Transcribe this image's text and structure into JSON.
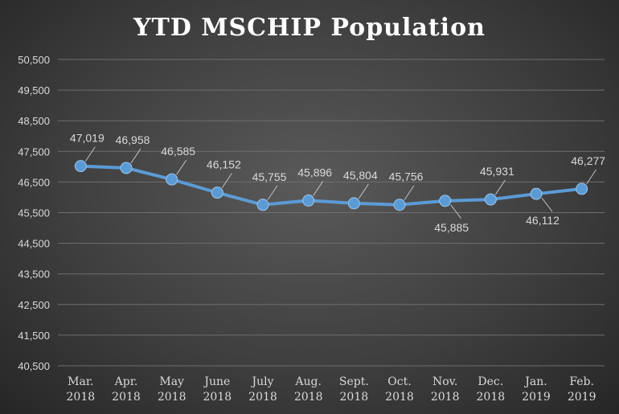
{
  "chart_data": {
    "type": "line",
    "title": "YTD MSCHIP Population",
    "xlabel": "",
    "ylabel": "",
    "categories": [
      [
        "Mar.",
        "2018"
      ],
      [
        "Apr.",
        "2018"
      ],
      [
        "May",
        "2018"
      ],
      [
        "June",
        "2018"
      ],
      [
        "July",
        "2018"
      ],
      [
        "Aug.",
        "2018"
      ],
      [
        "Sept.",
        "2018"
      ],
      [
        "Oct.",
        "2018"
      ],
      [
        "Nov.",
        "2018"
      ],
      [
        "Dec.",
        "2018"
      ],
      [
        "Jan.",
        "2019"
      ],
      [
        "Feb.",
        "2019"
      ]
    ],
    "series": [
      {
        "values": [
          47019,
          46958,
          46585,
          46152,
          45755,
          45896,
          45804,
          45756,
          45885,
          45931,
          46112,
          46277
        ],
        "labels": [
          "47,019",
          "46,958",
          "46,585",
          "46,152",
          "45,755",
          "45,896",
          "45,804",
          "45,756",
          "45,885",
          "45,931",
          "46,112",
          "46,277"
        ],
        "label_positions": [
          "above",
          "above",
          "above",
          "above",
          "above",
          "above",
          "above",
          "above",
          "below",
          "above",
          "below",
          "above"
        ]
      }
    ],
    "ylim": [
      40500,
      50500
    ],
    "yticks": [
      40500,
      41500,
      42500,
      43500,
      44500,
      45500,
      46500,
      47500,
      48500,
      49500,
      50500
    ],
    "ytick_labels": [
      "40,500",
      "41,500",
      "42,500",
      "43,500",
      "44,500",
      "45,500",
      "46,500",
      "47,500",
      "48,500",
      "49,500",
      "50,500"
    ],
    "grid": true,
    "legend": "none",
    "colors": {
      "line": "#5b9bd5",
      "marker": "#5b9bd5",
      "grid": "#6e6e6e",
      "text": "#d9d9d9",
      "title": "#ffffff"
    }
  }
}
